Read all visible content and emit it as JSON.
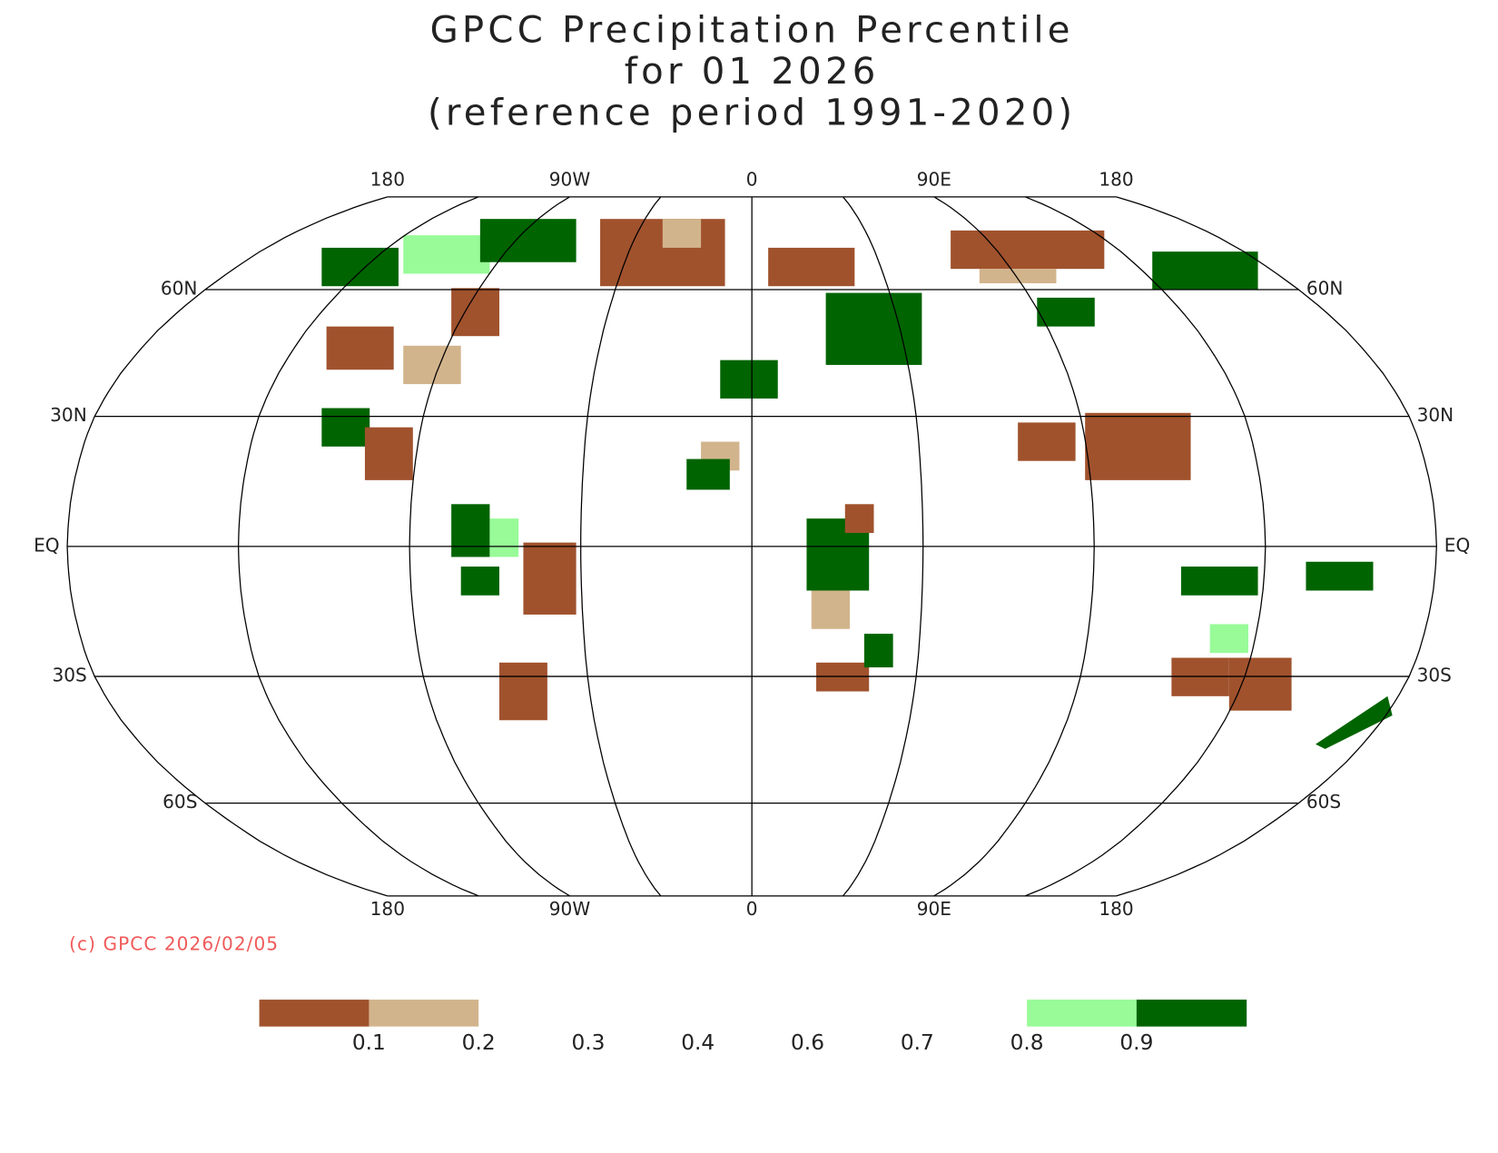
{
  "title_lines": [
    "GPCC Precipitation Percentile",
    "for 01 2026",
    "(reference period 1991-2020)"
  ],
  "graticule_labels": {
    "top": [
      "180",
      "90W",
      "0",
      "90E",
      "180"
    ],
    "bottom": [
      "180",
      "90W",
      "0",
      "90E",
      "180"
    ],
    "left": [
      "60N",
      "30N",
      "EQ",
      "30S",
      "60S"
    ],
    "right": [
      "60N",
      "30N",
      "EQ",
      "30S",
      "60S"
    ]
  },
  "copyright": "(c) GPCC 2026/02/05",
  "legend": {
    "labels": [
      "0.1",
      "0.2",
      "0.3",
      "0.4",
      "0.6",
      "0.7",
      "0.8",
      "0.9"
    ],
    "colors": [
      "#a0522d",
      "#d2b48c",
      "#ffffff",
      "#ffffff",
      "#ffffff",
      "#ffffff",
      "#ffffff",
      "#98fb98",
      "#006400"
    ]
  }
}
